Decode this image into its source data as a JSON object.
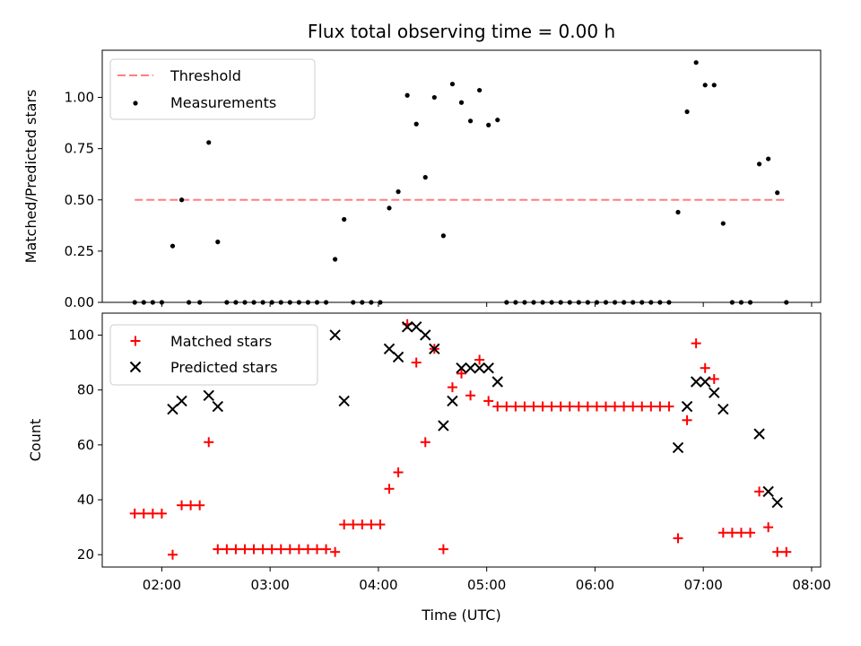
{
  "chart_data": [
    {
      "type": "scatter",
      "title": "Flux total observing time = 0.00 h",
      "xlabel": "",
      "ylabel": "Matched/Predicted stars",
      "xlim": [
        "01:27",
        "08:05"
      ],
      "ylim": [
        0,
        1.23
      ],
      "yticks": [
        "0.00",
        "0.25",
        "0.50",
        "0.75",
        "1.00"
      ],
      "grid": false,
      "legend_position": "top-left",
      "legend": [
        {
          "label": "Threshold",
          "style": "dashed-line",
          "color": "#ff7f7f"
        },
        {
          "label": "Measurements",
          "style": "dot",
          "color": "#000000"
        }
      ],
      "threshold": {
        "value": 0.5,
        "x_start": "01:45",
        "x_end": "07:45",
        "color": "#ff7f7f"
      },
      "series": [
        {
          "name": "Measurements",
          "color": "#000000",
          "points": [
            [
              "01:45",
              0
            ],
            [
              "01:50",
              0
            ],
            [
              "01:55",
              0
            ],
            [
              "02:00",
              0
            ],
            [
              "02:06",
              0.275
            ],
            [
              "02:11",
              0.5
            ],
            [
              "02:15",
              0
            ],
            [
              "02:21",
              0
            ],
            [
              "02:26",
              0.78
            ],
            [
              "02:31",
              0.295
            ],
            [
              "02:36",
              0
            ],
            [
              "02:41",
              0
            ],
            [
              "02:46",
              0
            ],
            [
              "02:51",
              0
            ],
            [
              "02:56",
              0
            ],
            [
              "03:01",
              0
            ],
            [
              "03:06",
              0
            ],
            [
              "03:11",
              0
            ],
            [
              "03:16",
              0
            ],
            [
              "03:21",
              0
            ],
            [
              "03:26",
              0
            ],
            [
              "03:31",
              0
            ],
            [
              "03:36",
              0.21
            ],
            [
              "03:41",
              0.405
            ],
            [
              "03:46",
              0
            ],
            [
              "03:51",
              0
            ],
            [
              "03:56",
              0
            ],
            [
              "04:01",
              0
            ],
            [
              "04:06",
              0.46
            ],
            [
              "04:11",
              0.54
            ],
            [
              "04:16",
              1.01
            ],
            [
              "04:21",
              0.87
            ],
            [
              "04:26",
              0.61
            ],
            [
              "04:31",
              1.0
            ],
            [
              "04:36",
              0.325
            ],
            [
              "04:41",
              1.065
            ],
            [
              "04:46",
              0.975
            ],
            [
              "04:51",
              0.885
            ],
            [
              "04:56",
              1.035
            ],
            [
              "05:01",
              0.865
            ],
            [
              "05:06",
              0.89
            ],
            [
              "05:11",
              0
            ],
            [
              "05:16",
              0
            ],
            [
              "05:21",
              0
            ],
            [
              "05:26",
              0
            ],
            [
              "05:31",
              0
            ],
            [
              "05:36",
              0
            ],
            [
              "05:41",
              0
            ],
            [
              "05:46",
              0
            ],
            [
              "05:51",
              0
            ],
            [
              "05:56",
              0
            ],
            [
              "06:01",
              0
            ],
            [
              "06:06",
              0
            ],
            [
              "06:11",
              0
            ],
            [
              "06:16",
              0
            ],
            [
              "06:21",
              0
            ],
            [
              "06:26",
              0
            ],
            [
              "06:31",
              0
            ],
            [
              "06:36",
              0
            ],
            [
              "06:41",
              0
            ],
            [
              "06:46",
              0.44
            ],
            [
              "06:51",
              0.93
            ],
            [
              "06:56",
              1.17
            ],
            [
              "07:01",
              1.06
            ],
            [
              "07:06",
              1.06
            ],
            [
              "07:11",
              0.385
            ],
            [
              "07:16",
              0
            ],
            [
              "07:21",
              0
            ],
            [
              "07:26",
              0
            ],
            [
              "07:31",
              0.675
            ],
            [
              "07:36",
              0.7
            ],
            [
              "07:41",
              0.535
            ],
            [
              "07:46",
              0
            ]
          ]
        }
      ]
    },
    {
      "type": "scatter",
      "title": "",
      "xlabel": "Time (UTC)",
      "ylabel": "Count",
      "xlim": [
        "01:27",
        "08:05"
      ],
      "ylim": [
        15.5,
        108
      ],
      "yticks": [
        "20",
        "40",
        "60",
        "80",
        "100"
      ],
      "xticks": [
        "02:00",
        "03:00",
        "04:00",
        "05:00",
        "06:00",
        "07:00",
        "08:00"
      ],
      "grid": false,
      "legend_position": "top-left",
      "series": [
        {
          "name": "Matched stars",
          "marker": "plus",
          "color": "#ff0000",
          "points": [
            [
              "01:45",
              35
            ],
            [
              "01:50",
              35
            ],
            [
              "01:55",
              35
            ],
            [
              "02:00",
              35
            ],
            [
              "02:06",
              20
            ],
            [
              "02:11",
              38
            ],
            [
              "02:16",
              38
            ],
            [
              "02:21",
              38
            ],
            [
              "02:26",
              61
            ],
            [
              "02:31",
              22
            ],
            [
              "02:36",
              22
            ],
            [
              "02:41",
              22
            ],
            [
              "02:46",
              22
            ],
            [
              "02:51",
              22
            ],
            [
              "02:56",
              22
            ],
            [
              "03:01",
              22
            ],
            [
              "03:06",
              22
            ],
            [
              "03:11",
              22
            ],
            [
              "03:16",
              22
            ],
            [
              "03:21",
              22
            ],
            [
              "03:26",
              22
            ],
            [
              "03:31",
              22
            ],
            [
              "03:36",
              21
            ],
            [
              "03:41",
              31
            ],
            [
              "03:46",
              31
            ],
            [
              "03:51",
              31
            ],
            [
              "03:56",
              31
            ],
            [
              "04:01",
              31
            ],
            [
              "04:06",
              44
            ],
            [
              "04:11",
              50
            ],
            [
              "04:16",
              104
            ],
            [
              "04:21",
              90
            ],
            [
              "04:26",
              61
            ],
            [
              "04:31",
              95
            ],
            [
              "04:36",
              22
            ],
            [
              "04:41",
              81
            ],
            [
              "04:46",
              86
            ],
            [
              "04:51",
              78
            ],
            [
              "04:56",
              91
            ],
            [
              "05:01",
              76
            ],
            [
              "05:06",
              74
            ],
            [
              "05:11",
              74
            ],
            [
              "05:16",
              74
            ],
            [
              "05:21",
              74
            ],
            [
              "05:26",
              74
            ],
            [
              "05:31",
              74
            ],
            [
              "05:36",
              74
            ],
            [
              "05:41",
              74
            ],
            [
              "05:46",
              74
            ],
            [
              "05:51",
              74
            ],
            [
              "05:56",
              74
            ],
            [
              "06:01",
              74
            ],
            [
              "06:06",
              74
            ],
            [
              "06:11",
              74
            ],
            [
              "06:16",
              74
            ],
            [
              "06:21",
              74
            ],
            [
              "06:26",
              74
            ],
            [
              "06:31",
              74
            ],
            [
              "06:36",
              74
            ],
            [
              "06:41",
              74
            ],
            [
              "06:46",
              26
            ],
            [
              "06:51",
              69
            ],
            [
              "06:56",
              97
            ],
            [
              "07:01",
              88
            ],
            [
              "07:06",
              84
            ],
            [
              "07:11",
              28
            ],
            [
              "07:16",
              28
            ],
            [
              "07:21",
              28
            ],
            [
              "07:26",
              28
            ],
            [
              "07:31",
              43
            ],
            [
              "07:36",
              30
            ],
            [
              "07:41",
              21
            ],
            [
              "07:46",
              21
            ]
          ]
        },
        {
          "name": "Predicted stars",
          "marker": "x",
          "color": "#000000",
          "points": [
            [
              "02:06",
              73
            ],
            [
              "02:11",
              76
            ],
            [
              "02:26",
              78
            ],
            [
              "02:31",
              74
            ],
            [
              "03:36",
              100
            ],
            [
              "03:41",
              76
            ],
            [
              "04:06",
              95
            ],
            [
              "04:11",
              92
            ],
            [
              "04:16",
              103
            ],
            [
              "04:21",
              103
            ],
            [
              "04:26",
              100
            ],
            [
              "04:31",
              95
            ],
            [
              "04:36",
              67
            ],
            [
              "04:41",
              76
            ],
            [
              "04:46",
              88
            ],
            [
              "04:51",
              88
            ],
            [
              "04:56",
              88
            ],
            [
              "05:01",
              88
            ],
            [
              "05:06",
              83
            ],
            [
              "06:46",
              59
            ],
            [
              "06:51",
              74
            ],
            [
              "06:56",
              83
            ],
            [
              "07:01",
              83
            ],
            [
              "07:06",
              79
            ],
            [
              "07:11",
              73
            ],
            [
              "07:31",
              64
            ],
            [
              "07:36",
              43
            ],
            [
              "07:41",
              39
            ]
          ]
        }
      ]
    }
  ]
}
